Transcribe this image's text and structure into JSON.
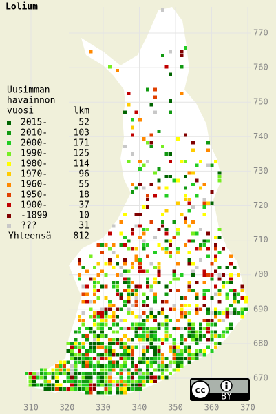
{
  "title": "Lolium",
  "legend": {
    "header": [
      "Uusimman",
      "havainnon",
      "vuosi"
    ],
    "count_header": "lkm",
    "items": [
      {
        "label": "2015-",
        "count": 52,
        "color": "#006400"
      },
      {
        "label": "2010-",
        "count": 103,
        "color": "#119911"
      },
      {
        "label": "2000-",
        "count": 171,
        "color": "#22cc22"
      },
      {
        "label": "1990-",
        "count": 125,
        "color": "#77ee22"
      },
      {
        "label": "1980-",
        "count": 114,
        "color": "#ffff00"
      },
      {
        "label": "1970-",
        "count": 96,
        "color": "#ffcc00"
      },
      {
        "label": "1960-",
        "count": 55,
        "color": "#ff8800"
      },
      {
        "label": "1950-",
        "count": 18,
        "color": "#e04000"
      },
      {
        "label": "1900-",
        "count": 37,
        "color": "#c00000"
      },
      {
        "label": "-1899",
        "count": 10,
        "color": "#800000"
      },
      {
        "label": "???",
        "count": 31,
        "color": "#c8c8c8"
      }
    ],
    "total_label": "Yhteensä",
    "total": 812
  },
  "axes": {
    "x_ticks": [
      310,
      320,
      330,
      340,
      350,
      360,
      370
    ],
    "y_ticks": [
      670,
      680,
      690,
      700,
      710,
      720,
      730,
      740,
      750,
      760,
      770
    ]
  },
  "license": {
    "icon": "cc",
    "badge": "BY"
  }
}
